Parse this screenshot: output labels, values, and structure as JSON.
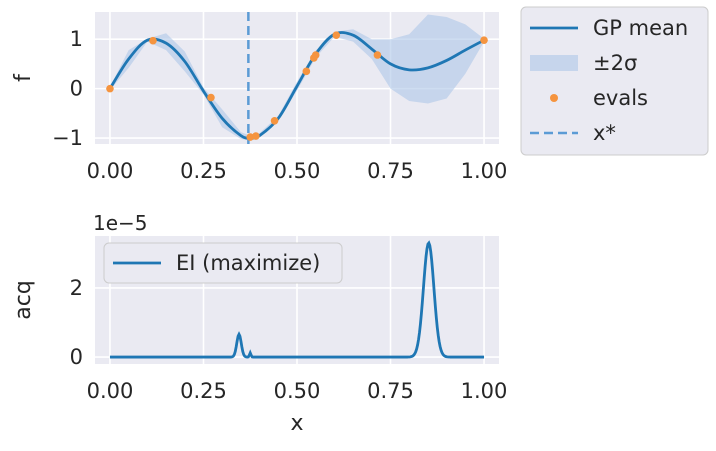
{
  "colors": {
    "panel_bg": "#eaeaf2",
    "grid": "#ffffff",
    "mean_line": "#1f77b4",
    "band": "#aec7e8",
    "evals": "#f5943f",
    "xstar": "#5b9bd5",
    "text": "#262626"
  },
  "chart_data": [
    {
      "type": "line",
      "ylabel": "f",
      "xlim": [
        -0.04,
        1.04
      ],
      "ylim": [
        -1.12,
        1.55
      ],
      "xticks": [
        0.0,
        0.25,
        0.5,
        0.75,
        1.0
      ],
      "xtick_labels": [
        "0.00",
        "0.25",
        "0.50",
        "0.75",
        "1.00"
      ],
      "yticks": [
        -1,
        0,
        1
      ],
      "ytick_labels": [
        "−1",
        "0",
        "1"
      ],
      "grid": true,
      "legend_position": "outside-right",
      "legend": [
        {
          "label": "GP mean",
          "kind": "line"
        },
        {
          "label": "±2σ",
          "kind": "band"
        },
        {
          "label": "evals",
          "kind": "point"
        },
        {
          "label": "x*",
          "kind": "dashed"
        }
      ],
      "series": [
        {
          "name": "GP mean",
          "x": [
            0.0,
            0.05,
            0.1,
            0.15,
            0.2,
            0.25,
            0.3,
            0.35,
            0.375,
            0.4,
            0.45,
            0.5,
            0.55,
            0.6,
            0.65,
            0.7,
            0.75,
            0.8,
            0.85,
            0.9,
            0.95,
            1.0
          ],
          "y": [
            0.0,
            0.6,
            0.98,
            0.92,
            0.55,
            -0.05,
            -0.6,
            -0.95,
            -1.0,
            -0.95,
            -0.6,
            0.05,
            0.7,
            1.1,
            1.08,
            0.8,
            0.5,
            0.38,
            0.42,
            0.57,
            0.78,
            0.98
          ]
        },
        {
          "name": "±2σ",
          "x": [
            0.0,
            0.05,
            0.1,
            0.15,
            0.2,
            0.25,
            0.3,
            0.35,
            0.375,
            0.4,
            0.45,
            0.5,
            0.55,
            0.6,
            0.65,
            0.7,
            0.75,
            0.8,
            0.85,
            0.9,
            0.95,
            1.0
          ],
          "lower": [
            -0.03,
            0.42,
            0.95,
            0.78,
            0.35,
            -0.12,
            -0.78,
            -1.02,
            -1.05,
            -0.98,
            -0.65,
            -0.04,
            0.63,
            1.05,
            0.95,
            0.6,
            0.0,
            -0.25,
            -0.3,
            -0.2,
            0.3,
            0.95
          ],
          "upper": [
            0.03,
            0.78,
            1.01,
            1.12,
            0.75,
            0.02,
            -0.42,
            -0.88,
            -0.95,
            -0.9,
            -0.55,
            0.14,
            0.77,
            1.15,
            1.2,
            1.0,
            1.0,
            1.1,
            1.5,
            1.45,
            1.3,
            1.01
          ]
        },
        {
          "name": "evals",
          "x": [
            0.0,
            0.115,
            0.27,
            0.375,
            0.39,
            0.44,
            0.525,
            0.545,
            0.55,
            0.605,
            0.715,
            1.0
          ],
          "y": [
            0.0,
            0.97,
            -0.18,
            -0.98,
            -0.96,
            -0.65,
            0.35,
            0.62,
            0.68,
            1.08,
            0.68,
            0.98
          ]
        }
      ],
      "x_star": 0.37
    },
    {
      "type": "line",
      "ylabel": "acq",
      "xlabel": "x",
      "scale_label": "1e−5",
      "xlim": [
        -0.04,
        1.04
      ],
      "ylim": [
        -0.2,
        3.5
      ],
      "xticks": [
        0.0,
        0.25,
        0.5,
        0.75,
        1.0
      ],
      "xtick_labels": [
        "0.00",
        "0.25",
        "0.50",
        "0.75",
        "1.00"
      ],
      "yticks": [
        0,
        2
      ],
      "ytick_labels": [
        "0",
        "2"
      ],
      "grid": true,
      "legend_position": "upper-left",
      "legend": [
        {
          "label": "EI (maximize)",
          "kind": "line"
        }
      ],
      "series": [
        {
          "name": "EI (maximize)",
          "peaks": [
            {
              "center": 0.345,
              "height": 0.66,
              "width": 0.006
            },
            {
              "center": 0.375,
              "height": 0.12,
              "width": 0.002
            },
            {
              "center": 0.852,
              "height": 3.3,
              "width": 0.014
            }
          ],
          "x_range": [
            0.0,
            1.0
          ]
        }
      ]
    }
  ]
}
